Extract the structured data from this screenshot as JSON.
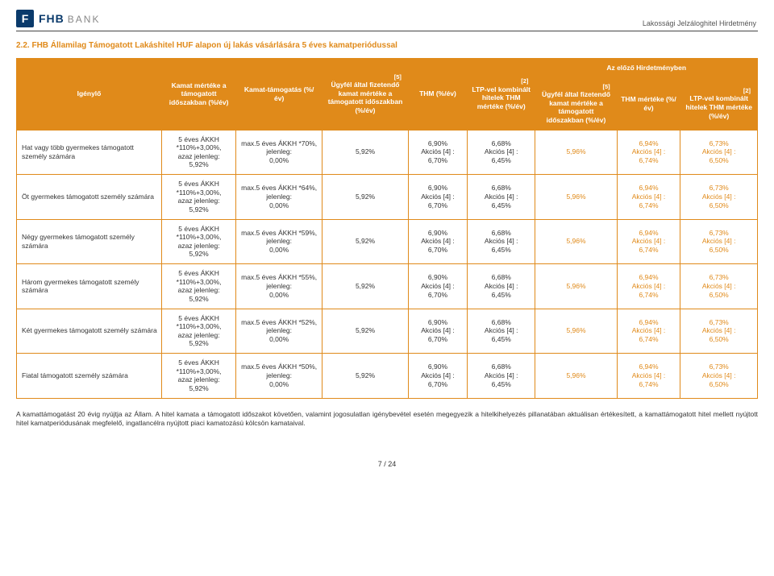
{
  "header": {
    "logo_letter": "F",
    "logo_fhb": "FHB",
    "logo_bank": "BANK",
    "top_right": "Lakossági Jelzáloghitel Hirdetmény"
  },
  "section": {
    "title": "2.2.    FHB Államilag Támogatott Lakáshitel HUF alapon új lakás vásárlására 5 éves kamatperiódussal"
  },
  "table": {
    "corner_note_5": "[5]",
    "corner_note_2": "[2]",
    "prev_header": "Az előző Hirdetményben",
    "headers": {
      "h1": "Igénylő",
      "h2": "Kamat mértéke a támogatott időszakban (%/év)",
      "h3": "Kamat-támogatás (%/év)",
      "h4": "Ügyfél által fizetendő kamat mértéke a támogatott időszakban (%/év)",
      "h5": "THM (%/év)",
      "h6": "LTP-vel kombinált hitelek THM mértéke (%/év)",
      "h7": "Ügyfél által fizetendő kamat mértéke a támogatott időszakban (%/év)",
      "h8": "THM mértéke (%/év)",
      "h9": "LTP-vel kombinált hitelek THM mértéke (%/év)"
    },
    "rows": [
      {
        "label": "Hat vagy több gyermekes támogatott személy számára",
        "c2_l1": "5 éves ÁKKH",
        "c2_l2": "*110%+3,00%,",
        "c2_l3": "azaz jelenleg:",
        "c2_l4": "5,92%",
        "c3_l1": "max.5 éves ÁKKH *70%,",
        "c3_l2": "jelenleg:",
        "c3_l3": "0,00%",
        "c4": "5,92%",
        "c5_l1": "6,90%",
        "c5_l2": "Akciós [4] :",
        "c5_l3": "6,70%",
        "c6_l1": "6,68%",
        "c6_l2": "Akciós [4] :",
        "c6_l3": "6,45%",
        "c7": "5,96%",
        "c8_l1": "6,94%",
        "c8_l2": "Akciós [4] :",
        "c8_l3": "6,74%",
        "c9_l1": "6,73%",
        "c9_l2": "Akciós [4] :",
        "c9_l3": "6,50%"
      },
      {
        "label": "Öt gyermekes támogatott személy számára",
        "c2_l1": "5 éves ÁKKH",
        "c2_l2": "*110%+3,00%,",
        "c2_l3": "azaz jelenleg:",
        "c2_l4": "5,92%",
        "c3_l1": "max.5 éves ÁKKH *64%,",
        "c3_l2": "jelenleg:",
        "c3_l3": "0,00%",
        "c4": "5,92%",
        "c5_l1": "6,90%",
        "c5_l2": "Akciós [4] :",
        "c5_l3": "6,70%",
        "c6_l1": "6,68%",
        "c6_l2": "Akciós [4] :",
        "c6_l3": "6,45%",
        "c7": "5,96%",
        "c8_l1": "6,94%",
        "c8_l2": "Akciós [4] :",
        "c8_l3": "6,74%",
        "c9_l1": "6,73%",
        "c9_l2": "Akciós [4] :",
        "c9_l3": "6,50%"
      },
      {
        "label": "Négy gyermekes támogatott személy számára",
        "c2_l1": "5 éves ÁKKH",
        "c2_l2": "*110%+3,00%,",
        "c2_l3": "azaz jelenleg:",
        "c2_l4": "5,92%",
        "c3_l1": "max.5 éves ÁKKH *59%,",
        "c3_l2": "jelenleg:",
        "c3_l3": "0,00%",
        "c4": "5,92%",
        "c5_l1": "6,90%",
        "c5_l2": "Akciós [4] :",
        "c5_l3": "6,70%",
        "c6_l1": "6,68%",
        "c6_l2": "Akciós [4] :",
        "c6_l3": "6,45%",
        "c7": "5,96%",
        "c8_l1": "6,94%",
        "c8_l2": "Akciós [4] :",
        "c8_l3": "6,74%",
        "c9_l1": "6,73%",
        "c9_l2": "Akciós [4] :",
        "c9_l3": "6,50%"
      },
      {
        "label": "Három gyermekes támogatott személy számára",
        "c2_l1": "5 éves ÁKKH",
        "c2_l2": "*110%+3,00%,",
        "c2_l3": "azaz jelenleg:",
        "c2_l4": "5,92%",
        "c3_l1": "max.5 éves ÁKKH *55%,",
        "c3_l2": "jelenleg:",
        "c3_l3": "0,00%",
        "c4": "5,92%",
        "c5_l1": "6,90%",
        "c5_l2": "Akciós [4] :",
        "c5_l3": "6,70%",
        "c6_l1": "6,68%",
        "c6_l2": "Akciós [4] :",
        "c6_l3": "6,45%",
        "c7": "5,96%",
        "c8_l1": "6,94%",
        "c8_l2": "Akciós [4] :",
        "c8_l3": "6,74%",
        "c9_l1": "6,73%",
        "c9_l2": "Akciós [4] :",
        "c9_l3": "6,50%"
      },
      {
        "label": "Két gyermekes támogatott személy számára",
        "c2_l1": "5 éves ÁKKH",
        "c2_l2": "*110%+3,00%,",
        "c2_l3": "azaz jelenleg:",
        "c2_l4": "5,92%",
        "c3_l1": "max.5 éves ÁKKH *52%,",
        "c3_l2": "jelenleg:",
        "c3_l3": "0,00%",
        "c4": "5,92%",
        "c5_l1": "6,90%",
        "c5_l2": "Akciós [4] :",
        "c5_l3": "6,70%",
        "c6_l1": "6,68%",
        "c6_l2": "Akciós [4] :",
        "c6_l3": "6,45%",
        "c7": "5,96%",
        "c8_l1": "6,94%",
        "c8_l2": "Akciós [4] :",
        "c8_l3": "6,74%",
        "c9_l1": "6,73%",
        "c9_l2": "Akciós [4] :",
        "c9_l3": "6,50%"
      },
      {
        "label": "Fiatal támogatott személy számára",
        "c2_l1": "5 éves ÁKKH",
        "c2_l2": "*110%+3,00%,",
        "c2_l3": "azaz jelenleg:",
        "c2_l4": "5,92%",
        "c3_l1": "max.5 éves ÁKKH *50%,",
        "c3_l2": "jelenleg:",
        "c3_l3": "0,00%",
        "c4": "5,92%",
        "c5_l1": "6,90%",
        "c5_l2": "Akciós [4] :",
        "c5_l3": "6,70%",
        "c6_l1": "6,68%",
        "c6_l2": "Akciós [4] :",
        "c6_l3": "6,45%",
        "c7": "5,96%",
        "c8_l1": "6,94%",
        "c8_l2": "Akciós [4] :",
        "c8_l3": "6,74%",
        "c9_l1": "6,73%",
        "c9_l2": "Akciós [4] :",
        "c9_l3": "6,50%"
      }
    ]
  },
  "footnote": "A kamattámogatást 20 évig nyújtja az Állam. A hitel kamata a támogatott időszakot követően, valamint jogosulatlan igénybevétel esetén megegyezik a hitelkihelyezés pillanatában aktuálisan értékesített, a kamattámogatott hitel mellett nyújtott hitel kamatperiódusának megfelelő, ingatlancélra nyújtott piaci kamatozású kölcsön kamataival.",
  "page_number": "7 / 24",
  "styling": {
    "brand_orange": "#e08a1a",
    "brand_navy": "#0a3a6b",
    "fontsize_body": 8.5,
    "fontsize_title": 10,
    "bg_header": "#e08a1a",
    "header_text_color": "#ffffff"
  }
}
